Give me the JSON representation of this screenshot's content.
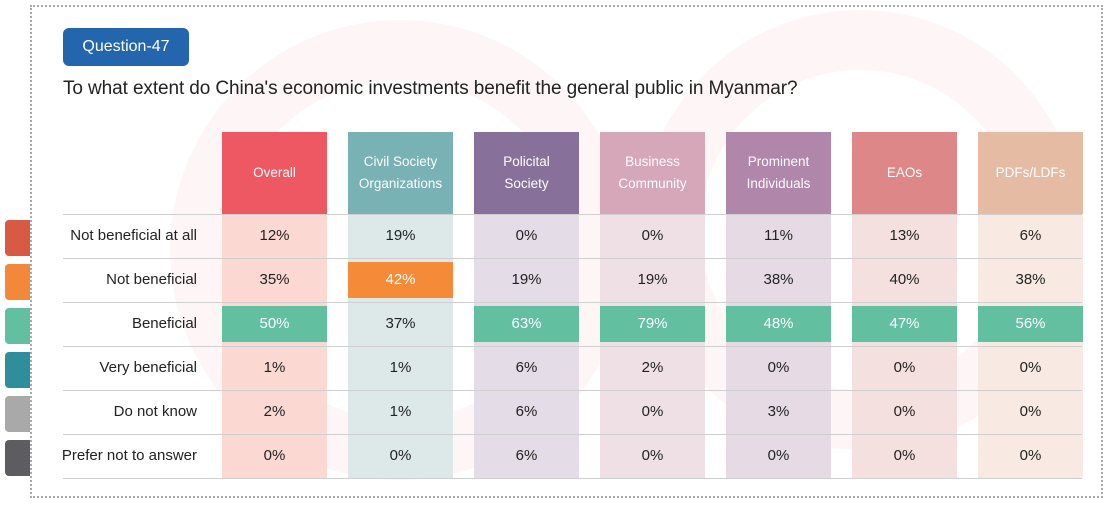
{
  "badge": "Question-47",
  "question": "To what extent do China's economic investments benefit the general public in Myanmar?",
  "columns": [
    {
      "label": "Overall",
      "color": "#ee525d",
      "tint": "#fbd8d2"
    },
    {
      "label": "Civil Society Organizations",
      "color": "#74b0b2",
      "tint": "#dde9e9"
    },
    {
      "label": "Policital Society",
      "color": "#836c98",
      "tint": "#e4dce6"
    },
    {
      "label": "Business Community",
      "color": "#d4a5b7",
      "tint": "#efe0e5"
    },
    {
      "label": "Prominent Individuals",
      "color": "#ae82a8",
      "tint": "#e6dbe4"
    },
    {
      "label": "EAOs",
      "color": "#dc8385",
      "tint": "#f4e0df"
    },
    {
      "label": "PDFs/LDFs",
      "color": "#e5b9a0",
      "tint": "#f8eae3"
    }
  ],
  "rows": [
    {
      "label": "Not beneficial at all",
      "tab": "#d85a45",
      "values": [
        "12%",
        "19%",
        "0%",
        "0%",
        "11%",
        "13%",
        "6%"
      ]
    },
    {
      "label": "Not beneficial",
      "tab": "#f3873a",
      "values": [
        "35%",
        "42%",
        "19%",
        "19%",
        "38%",
        "40%",
        "38%"
      ]
    },
    {
      "label": "Beneficial",
      "tab": "#62c0a0",
      "values": [
        "50%",
        "37%",
        "63%",
        "79%",
        "48%",
        "47%",
        "56%"
      ]
    },
    {
      "label": "Very beneficial",
      "tab": "#2f8e9b",
      "values": [
        "1%",
        "1%",
        "6%",
        "2%",
        "0%",
        "0%",
        "0%"
      ]
    },
    {
      "label": "Do not know",
      "tab": "#a9a9aa",
      "values": [
        "2%",
        "1%",
        "6%",
        "0%",
        "3%",
        "0%",
        "0%"
      ]
    },
    {
      "label": "Prefer not to answer",
      "tab": "#5d5d61",
      "values": [
        "0%",
        "0%",
        "6%",
        "0%",
        "0%",
        "0%",
        "0%"
      ]
    }
  ],
  "highlights": [
    {
      "row": 1,
      "col": 1,
      "color": "#f58a38"
    },
    {
      "row": 2,
      "col": 0,
      "color": "#62bfa0"
    },
    {
      "row": 2,
      "col": 2,
      "color": "#62bfa0"
    },
    {
      "row": 2,
      "col": 3,
      "color": "#62bfa0"
    },
    {
      "row": 2,
      "col": 4,
      "color": "#62bfa0"
    },
    {
      "row": 2,
      "col": 5,
      "color": "#62bfa0"
    },
    {
      "row": 2,
      "col": 6,
      "color": "#62bfa0"
    }
  ]
}
